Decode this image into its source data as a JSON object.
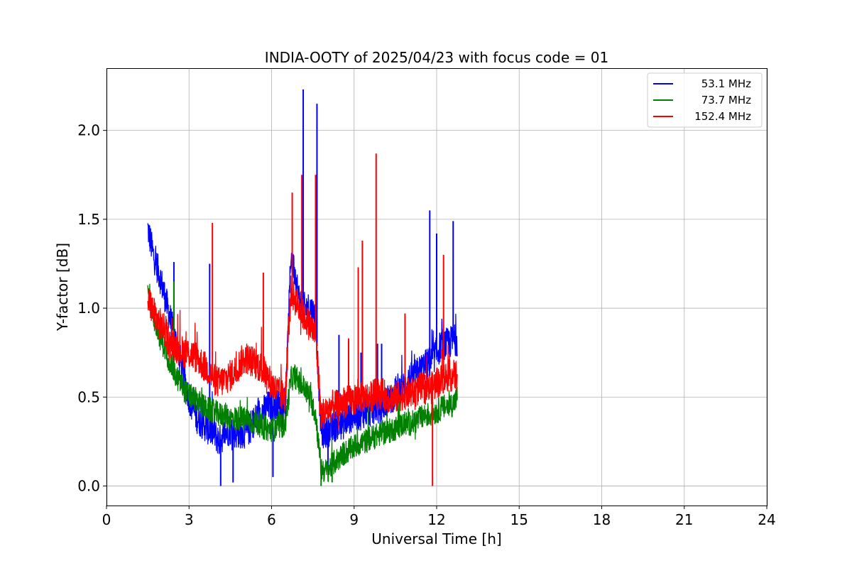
{
  "chart_data": {
    "type": "line",
    "title": "INDIA-OOTY of 2025/04/23 with focus code = 01",
    "xlabel": "Universal Time [h]",
    "ylabel": "Y-factor [dB]",
    "xlim": [
      0,
      24
    ],
    "ylim": [
      -0.11,
      2.35
    ],
    "xticks": [
      0,
      3,
      6,
      9,
      12,
      15,
      18,
      21,
      24
    ],
    "xtick_labels": [
      "0",
      "3",
      "6",
      "9",
      "12",
      "15",
      "18",
      "21",
      "24"
    ],
    "yticks": [
      0.0,
      0.5,
      1.0,
      1.5,
      2.0
    ],
    "ytick_labels": [
      "0.0",
      "0.5",
      "1.0",
      "1.5",
      "2.0"
    ],
    "grid": true,
    "legend_position": "top-right",
    "series": [
      {
        "name": "53.1 MHz",
        "color": "#0000ff",
        "x": [
          1.5,
          1.7,
          1.9,
          2.1,
          2.3,
          2.5,
          2.7,
          2.9,
          3.1,
          3.3,
          3.5,
          3.7,
          3.9,
          4.1,
          4.3,
          4.5,
          4.7,
          4.9,
          5.1,
          5.3,
          5.5,
          5.7,
          5.9,
          6.1,
          6.3,
          6.5,
          6.7,
          6.85,
          7.0,
          7.2,
          7.4,
          7.6,
          7.8,
          8.0,
          8.2,
          8.4,
          8.6,
          8.8,
          9.0,
          9.2,
          9.4,
          9.6,
          9.8,
          10.0,
          10.2,
          10.4,
          10.6,
          10.8,
          11.0,
          11.2,
          11.4,
          11.6,
          11.8,
          12.0,
          12.2,
          12.4,
          12.6,
          12.75
        ],
        "y": [
          1.45,
          1.3,
          1.2,
          1.08,
          0.95,
          0.82,
          0.7,
          0.55,
          0.45,
          0.38,
          0.35,
          0.32,
          0.3,
          0.25,
          0.3,
          0.32,
          0.3,
          0.3,
          0.3,
          0.35,
          0.4,
          0.42,
          0.45,
          0.45,
          0.45,
          0.42,
          1.3,
          1.2,
          1.05,
          1.0,
          1.0,
          0.95,
          0.3,
          0.3,
          0.32,
          0.35,
          0.35,
          0.38,
          0.4,
          0.4,
          0.42,
          0.42,
          0.45,
          0.45,
          0.48,
          0.5,
          0.55,
          0.55,
          0.6,
          0.62,
          0.65,
          0.68,
          0.7,
          0.75,
          0.8,
          0.8,
          0.82,
          0.82
        ],
        "spikes": [
          [
            2.45,
            1.26
          ],
          [
            3.75,
            1.25
          ],
          [
            4.15,
            0.0
          ],
          [
            4.6,
            0.02
          ],
          [
            6.05,
            0.05
          ],
          [
            7.15,
            2.23
          ],
          [
            7.65,
            2.15
          ],
          [
            8.45,
            0.85
          ],
          [
            9.25,
            0.75
          ],
          [
            9.85,
            0.8
          ],
          [
            10.0,
            0.8
          ],
          [
            11.75,
            1.55
          ],
          [
            12.0,
            1.42
          ],
          [
            12.6,
            1.49
          ],
          [
            8.05,
            0.08
          ]
        ]
      },
      {
        "name": "73.7 MHz",
        "color": "#008000",
        "x": [
          1.5,
          1.7,
          1.9,
          2.1,
          2.3,
          2.5,
          2.7,
          2.9,
          3.1,
          3.3,
          3.5,
          3.7,
          3.9,
          4.1,
          4.3,
          4.5,
          4.7,
          4.9,
          5.1,
          5.3,
          5.5,
          5.7,
          5.9,
          6.1,
          6.3,
          6.5,
          6.7,
          6.85,
          7.0,
          7.2,
          7.4,
          7.6,
          7.8,
          8.0,
          8.2,
          8.4,
          8.6,
          8.8,
          9.0,
          9.2,
          9.4,
          9.6,
          9.8,
          10.0,
          10.2,
          10.4,
          10.6,
          10.8,
          11.0,
          11.2,
          11.4,
          11.6,
          11.8,
          12.0,
          12.2,
          12.4,
          12.6,
          12.75
        ],
        "y": [
          1.1,
          0.95,
          0.85,
          0.78,
          0.7,
          0.62,
          0.58,
          0.52,
          0.5,
          0.48,
          0.45,
          0.43,
          0.42,
          0.4,
          0.4,
          0.38,
          0.38,
          0.38,
          0.37,
          0.36,
          0.35,
          0.33,
          0.32,
          0.32,
          0.33,
          0.35,
          0.6,
          0.62,
          0.58,
          0.55,
          0.5,
          0.4,
          0.1,
          0.08,
          0.12,
          0.15,
          0.18,
          0.2,
          0.22,
          0.24,
          0.25,
          0.27,
          0.28,
          0.3,
          0.3,
          0.32,
          0.33,
          0.35,
          0.35,
          0.36,
          0.38,
          0.4,
          0.4,
          0.42,
          0.44,
          0.45,
          0.46,
          0.5
        ],
        "spikes": [
          [
            2.45,
            1.15
          ],
          [
            7.8,
            0.0
          ],
          [
            8.2,
            0.02
          ]
        ]
      },
      {
        "name": "152.4 MHz",
        "color": "#ff0000",
        "x": [
          1.5,
          1.7,
          1.9,
          2.1,
          2.3,
          2.5,
          2.7,
          2.9,
          3.1,
          3.3,
          3.5,
          3.7,
          3.9,
          4.1,
          4.3,
          4.5,
          4.7,
          4.9,
          5.1,
          5.3,
          5.5,
          5.7,
          5.9,
          6.1,
          6.3,
          6.5,
          6.7,
          6.85,
          7.0,
          7.2,
          7.4,
          7.6,
          7.8,
          8.0,
          8.2,
          8.4,
          8.6,
          8.8,
          9.0,
          9.2,
          9.4,
          9.6,
          9.8,
          10.0,
          10.2,
          10.4,
          10.6,
          10.8,
          11.0,
          11.2,
          11.4,
          11.6,
          11.8,
          12.0,
          12.2,
          12.4,
          12.6,
          12.75
        ],
        "y": [
          1.05,
          0.98,
          0.92,
          0.88,
          0.8,
          0.78,
          0.76,
          0.75,
          0.74,
          0.72,
          0.68,
          0.65,
          0.6,
          0.58,
          0.6,
          0.62,
          0.65,
          0.7,
          0.72,
          0.7,
          0.68,
          0.65,
          0.6,
          0.55,
          0.52,
          0.5,
          1.1,
          1.05,
          1.0,
          0.95,
          0.9,
          0.85,
          0.4,
          0.42,
          0.45,
          0.45,
          0.47,
          0.48,
          0.48,
          0.5,
          0.5,
          0.5,
          0.52,
          0.52,
          0.5,
          0.5,
          0.5,
          0.52,
          0.52,
          0.53,
          0.55,
          0.55,
          0.55,
          0.58,
          0.6,
          0.62,
          0.62,
          0.62
        ],
        "spikes": [
          [
            3.85,
            1.48
          ],
          [
            5.7,
            1.2
          ],
          [
            6.75,
            1.65
          ],
          [
            7.1,
            1.75
          ],
          [
            7.6,
            1.75
          ],
          [
            8.8,
            0.83
          ],
          [
            9.15,
            1.23
          ],
          [
            9.3,
            1.38
          ],
          [
            9.8,
            1.87
          ],
          [
            10.85,
            0.97
          ],
          [
            11.85,
            0.0
          ],
          [
            12.25,
            1.3
          ]
        ]
      }
    ]
  }
}
